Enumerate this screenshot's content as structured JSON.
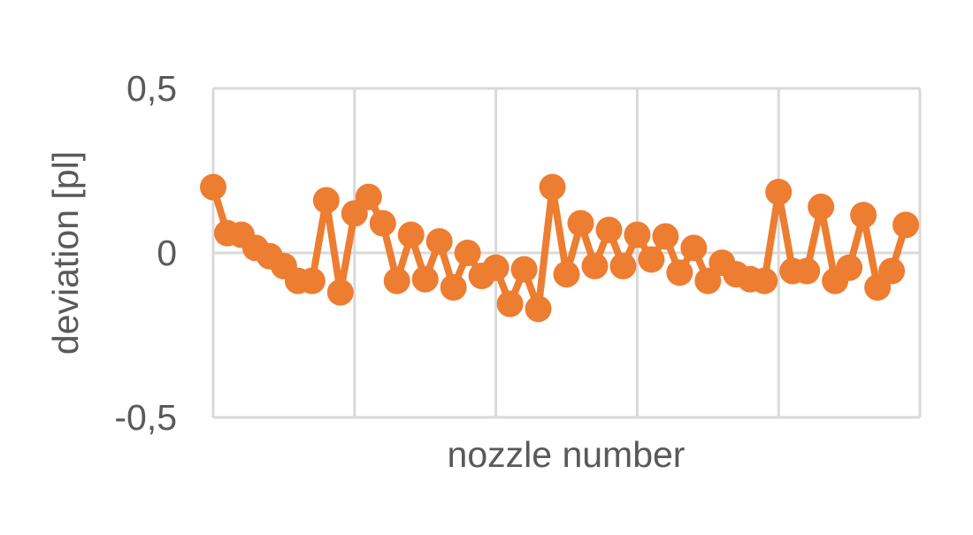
{
  "chart_data": {
    "type": "line",
    "title": "",
    "xlabel": "nozzle number",
    "ylabel": "deviation [pl]",
    "ylim": [
      -0.5,
      0.5
    ],
    "yticks": [
      0.5,
      0,
      -0.5
    ],
    "ytick_labels": [
      "0,5",
      "0",
      "-0,5"
    ],
    "xlim": [
      1,
      51
    ],
    "x_grid_step": 10,
    "x_tick_labels_shown": false,
    "grid": true,
    "markers": true,
    "series_color": "#ED7D31",
    "grid_color": "#D9D9D9",
    "x": [
      1,
      2,
      3,
      4,
      5,
      6,
      7,
      8,
      9,
      10,
      11,
      12,
      13,
      14,
      15,
      16,
      17,
      18,
      19,
      20,
      21,
      22,
      23,
      24,
      25,
      26,
      27,
      28,
      29,
      30,
      31,
      32,
      33,
      34,
      35,
      36,
      37,
      38,
      39,
      40,
      41,
      42,
      43,
      44,
      45,
      46,
      47,
      48,
      49,
      50
    ],
    "values": [
      0.2,
      0.06,
      0.055,
      0.015,
      -0.01,
      -0.04,
      -0.085,
      -0.085,
      0.16,
      -0.12,
      0.12,
      0.17,
      0.09,
      -0.085,
      0.055,
      -0.08,
      0.035,
      -0.105,
      0.0,
      -0.07,
      -0.045,
      -0.155,
      -0.05,
      -0.17,
      0.2,
      -0.065,
      0.09,
      -0.04,
      0.07,
      -0.04,
      0.055,
      -0.02,
      0.05,
      -0.06,
      0.015,
      -0.085,
      -0.03,
      -0.065,
      -0.08,
      -0.085,
      0.185,
      -0.055,
      -0.055,
      0.14,
      -0.085,
      -0.045,
      0.115,
      -0.105,
      -0.055,
      0.085
    ]
  }
}
